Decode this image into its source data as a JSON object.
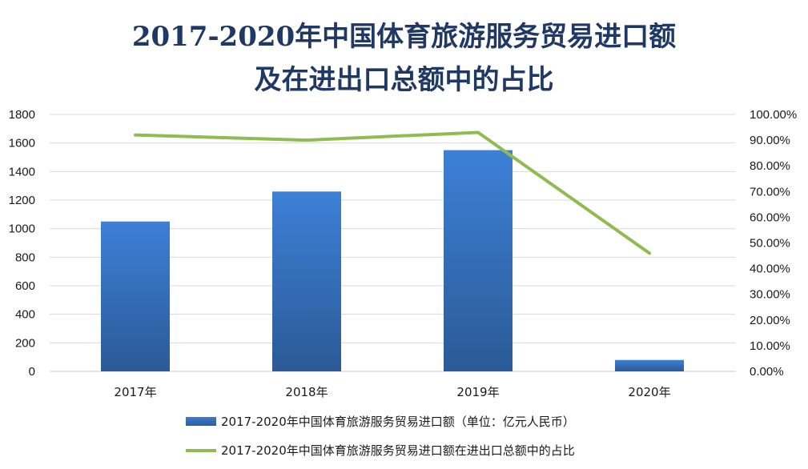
{
  "title_line1": "2017-2020年中国体育旅游服务贸易进口额",
  "title_line2": "及在进出口总额中的占比",
  "chart_data": {
    "type": "bar",
    "categories": [
      "2017年",
      "2018年",
      "2019年",
      "2020年"
    ],
    "series": [
      {
        "name": "2017-2020年中国体育旅游服务贸易进口额（单位：亿元人民币）",
        "type": "bar",
        "axis": "left",
        "color": "#3a7bd0",
        "values": [
          1050,
          1260,
          1550,
          80
        ]
      },
      {
        "name": "2017-2020年中国体育旅游服务贸易进口额在进出口总额中的占比",
        "type": "line",
        "axis": "right",
        "color": "#8fbb50",
        "values": [
          0.92,
          0.9,
          0.93,
          0.46
        ]
      }
    ],
    "y_left": {
      "range": [
        0,
        1800
      ],
      "ticks": [
        "0",
        "200",
        "400",
        "600",
        "800",
        "1000",
        "1200",
        "1400",
        "1600",
        "1800"
      ]
    },
    "y_right": {
      "range": [
        0,
        1
      ],
      "ticks": [
        "0.00%",
        "10.00%",
        "20.00%",
        "30.00%",
        "40.00%",
        "50.00%",
        "60.00%",
        "70.00%",
        "80.00%",
        "90.00%",
        "100.00%"
      ]
    },
    "grid": true,
    "legend_position": "bottom"
  }
}
